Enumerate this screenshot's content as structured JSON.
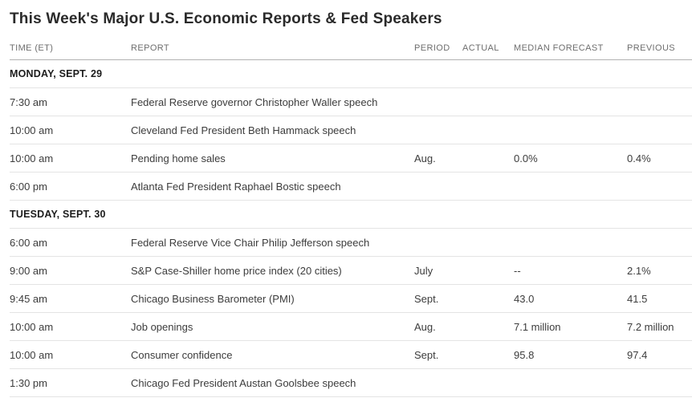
{
  "page": {
    "title": "This Week's Major U.S. Economic Reports & Fed Speakers"
  },
  "table": {
    "columns": {
      "time": "TIME (ET)",
      "report": "REPORT",
      "period": "PERIOD",
      "actual": "ACTUAL",
      "median_forecast": "MEDIAN FORECAST",
      "previous": "PREVIOUS"
    },
    "rows": [
      {
        "type": "section",
        "label": "MONDAY, SEPT. 29"
      },
      {
        "type": "data",
        "time": "7:30 am",
        "report": "Federal Reserve governor Christopher Waller speech",
        "period": "",
        "actual": "",
        "median_forecast": "",
        "previous": ""
      },
      {
        "type": "data",
        "time": "10:00 am",
        "report": "Cleveland Fed President Beth Hammack speech",
        "period": "",
        "actual": "",
        "median_forecast": "",
        "previous": ""
      },
      {
        "type": "data",
        "time": "10:00 am",
        "report": "Pending home sales",
        "period": "Aug.",
        "actual": "",
        "median_forecast": "0.0%",
        "previous": "0.4%"
      },
      {
        "type": "data",
        "time": "6:00 pm",
        "report": "Atlanta Fed President Raphael Bostic speech",
        "period": "",
        "actual": "",
        "median_forecast": "",
        "previous": ""
      },
      {
        "type": "section",
        "label": "TUESDAY, SEPT. 30"
      },
      {
        "type": "data",
        "time": "6:00 am",
        "report": "Federal Reserve Vice Chair Philip Jefferson speech",
        "period": "",
        "actual": "",
        "median_forecast": "",
        "previous": ""
      },
      {
        "type": "data",
        "time": "9:00 am",
        "report": "S&P Case-Shiller home price index (20 cities)",
        "period": "July",
        "actual": "",
        "median_forecast": "--",
        "previous": "2.1%"
      },
      {
        "type": "data",
        "time": "9:45 am",
        "report": "Chicago Business Barometer (PMI)",
        "period": "Sept.",
        "actual": "",
        "median_forecast": "43.0",
        "previous": "41.5"
      },
      {
        "type": "data",
        "time": "10:00 am",
        "report": "Job openings",
        "period": "Aug.",
        "actual": "",
        "median_forecast": "7.1 million",
        "previous": "7.2 million"
      },
      {
        "type": "data",
        "time": "10:00 am",
        "report": "Consumer confidence",
        "period": "Sept.",
        "actual": "",
        "median_forecast": "95.8",
        "previous": "97.4"
      },
      {
        "type": "data",
        "time": "1:30 pm",
        "report": "Chicago Fed President Austan Goolsbee speech",
        "period": "",
        "actual": "",
        "median_forecast": "",
        "previous": ""
      }
    ]
  }
}
